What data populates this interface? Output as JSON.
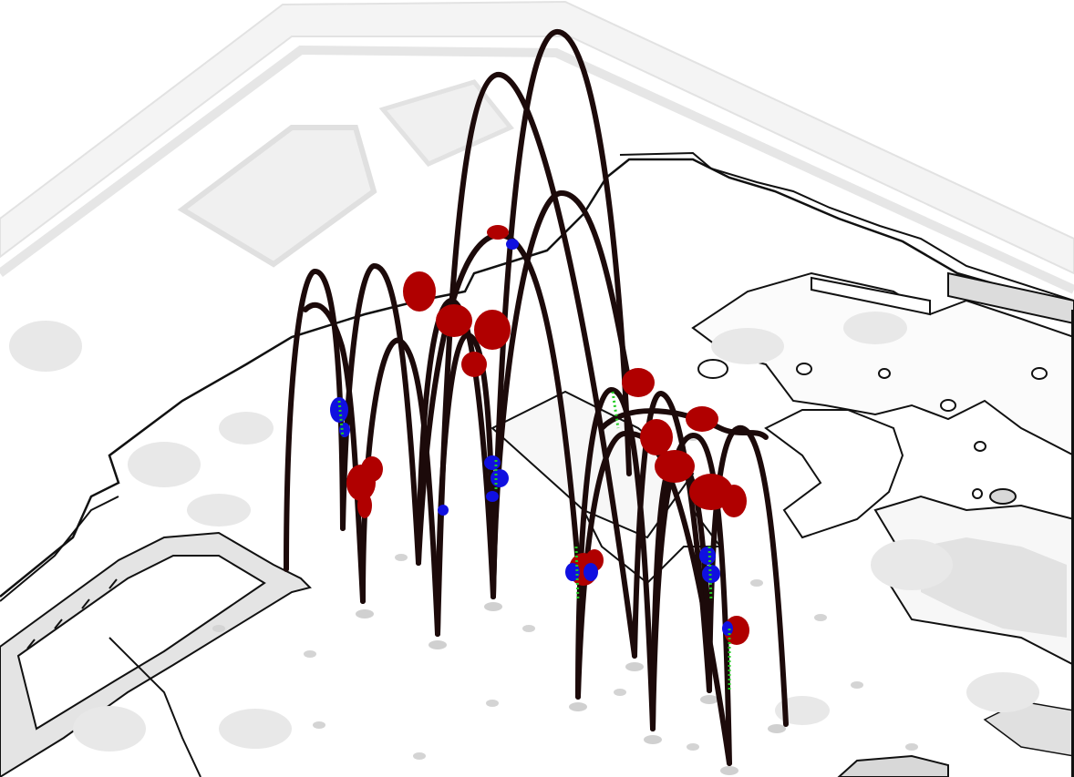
{
  "scene": {
    "background": "#ffffff",
    "plan_fill": "#e6e6e6",
    "plan_light": "#f2f2f2",
    "plan_faint": "#ececec",
    "outline": "#111111",
    "column": "#1c0a0a",
    "highlight_red": "#b00000",
    "highlight_blue": "#1010e0",
    "highlight_green": "#22cc22",
    "shadow": "#d0d0d0"
  }
}
